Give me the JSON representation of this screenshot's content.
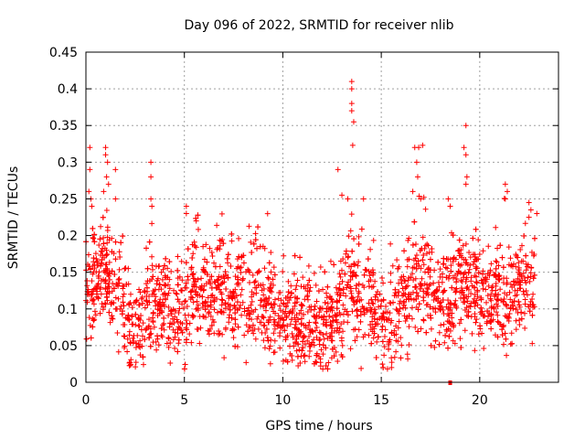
{
  "chart_data": {
    "type": "scatter",
    "title": "Day 096 of 2022, SRMTID for receiver nlib",
    "xlabel": "GPS time / hours",
    "ylabel": "SRMTID / TECUs",
    "xlim": [
      0,
      24
    ],
    "ylim": [
      0,
      0.45
    ],
    "xticks": [
      0,
      5,
      10,
      15,
      20
    ],
    "xtick_labels": [
      "0",
      "5",
      "10",
      "15",
      "20"
    ],
    "yticks": [
      0,
      0.05,
      0.1,
      0.15,
      0.2,
      0.25,
      0.3,
      0.35,
      0.4,
      0.45
    ],
    "ytick_labels": [
      "0",
      "0.05",
      "0.1",
      "0.15",
      "0.2",
      "0.25",
      "0.3",
      "0.35",
      "0.4",
      "0.45"
    ],
    "grid": true,
    "marker": "+",
    "color": "#ff0000",
    "outliers": [
      {
        "x": 0.2,
        "y": 0.32
      },
      {
        "x": 0.2,
        "y": 0.29
      },
      {
        "x": 0.15,
        "y": 0.26
      },
      {
        "x": 0.25,
        "y": 0.25
      },
      {
        "x": 0.3,
        "y": 0.24
      },
      {
        "x": 1.0,
        "y": 0.32
      },
      {
        "x": 1.0,
        "y": 0.31
      },
      {
        "x": 1.1,
        "y": 0.3
      },
      {
        "x": 1.05,
        "y": 0.28
      },
      {
        "x": 1.15,
        "y": 0.27
      },
      {
        "x": 0.9,
        "y": 0.26
      },
      {
        "x": 1.5,
        "y": 0.29
      },
      {
        "x": 1.5,
        "y": 0.25
      },
      {
        "x": 3.3,
        "y": 0.3
      },
      {
        "x": 3.3,
        "y": 0.28
      },
      {
        "x": 3.3,
        "y": 0.25
      },
      {
        "x": 3.35,
        "y": 0.24
      },
      {
        "x": 5.1,
        "y": 0.24
      },
      {
        "x": 5.1,
        "y": 0.23
      },
      {
        "x": 5.6,
        "y": 0.22
      },
      {
        "x": 13.5,
        "y": 0.41
      },
      {
        "x": 13.5,
        "y": 0.4
      },
      {
        "x": 13.5,
        "y": 0.38
      },
      {
        "x": 13.5,
        "y": 0.37
      },
      {
        "x": 13.6,
        "y": 0.355
      },
      {
        "x": 13.55,
        "y": 0.323
      },
      {
        "x": 12.8,
        "y": 0.29
      },
      {
        "x": 13.0,
        "y": 0.255
      },
      {
        "x": 13.3,
        "y": 0.25
      },
      {
        "x": 14.1,
        "y": 0.25
      },
      {
        "x": 16.7,
        "y": 0.32
      },
      {
        "x": 16.9,
        "y": 0.32
      },
      {
        "x": 17.1,
        "y": 0.323
      },
      {
        "x": 16.8,
        "y": 0.3
      },
      {
        "x": 16.85,
        "y": 0.28
      },
      {
        "x": 16.6,
        "y": 0.26
      },
      {
        "x": 17.0,
        "y": 0.25
      },
      {
        "x": 19.3,
        "y": 0.35
      },
      {
        "x": 19.2,
        "y": 0.32
      },
      {
        "x": 19.3,
        "y": 0.31
      },
      {
        "x": 19.35,
        "y": 0.28
      },
      {
        "x": 19.3,
        "y": 0.27
      },
      {
        "x": 18.4,
        "y": 0.25
      },
      {
        "x": 18.5,
        "y": 0.24
      },
      {
        "x": 21.3,
        "y": 0.27
      },
      {
        "x": 21.4,
        "y": 0.26
      },
      {
        "x": 21.3,
        "y": 0.25
      },
      {
        "x": 22.5,
        "y": 0.245
      },
      {
        "x": 22.6,
        "y": 0.235
      },
      {
        "x": 22.5,
        "y": 0.225
      },
      {
        "x": 22.9,
        "y": 0.23
      }
    ],
    "trend": [
      {
        "x": 0.0,
        "y": 0.13
      },
      {
        "x": 0.5,
        "y": 0.14
      },
      {
        "x": 1.0,
        "y": 0.15
      },
      {
        "x": 1.5,
        "y": 0.14
      },
      {
        "x": 2.0,
        "y": 0.1
      },
      {
        "x": 2.5,
        "y": 0.07
      },
      {
        "x": 3.0,
        "y": 0.09
      },
      {
        "x": 3.5,
        "y": 0.11
      },
      {
        "x": 4.0,
        "y": 0.12
      },
      {
        "x": 4.5,
        "y": 0.1
      },
      {
        "x": 5.0,
        "y": 0.09
      },
      {
        "x": 5.5,
        "y": 0.13
      },
      {
        "x": 6.0,
        "y": 0.13
      },
      {
        "x": 6.5,
        "y": 0.12
      },
      {
        "x": 7.0,
        "y": 0.12
      },
      {
        "x": 7.5,
        "y": 0.11
      },
      {
        "x": 8.0,
        "y": 0.13
      },
      {
        "x": 8.5,
        "y": 0.12
      },
      {
        "x": 9.0,
        "y": 0.11
      },
      {
        "x": 9.5,
        "y": 0.1
      },
      {
        "x": 10.0,
        "y": 0.09
      },
      {
        "x": 10.5,
        "y": 0.08
      },
      {
        "x": 11.0,
        "y": 0.08
      },
      {
        "x": 11.5,
        "y": 0.08
      },
      {
        "x": 12.0,
        "y": 0.07
      },
      {
        "x": 12.5,
        "y": 0.08
      },
      {
        "x": 13.0,
        "y": 0.11
      },
      {
        "x": 13.5,
        "y": 0.14
      },
      {
        "x": 14.0,
        "y": 0.12
      },
      {
        "x": 14.5,
        "y": 0.1
      },
      {
        "x": 15.0,
        "y": 0.09
      },
      {
        "x": 15.5,
        "y": 0.08
      },
      {
        "x": 16.0,
        "y": 0.11
      },
      {
        "x": 16.5,
        "y": 0.13
      },
      {
        "x": 17.0,
        "y": 0.15
      },
      {
        "x": 17.5,
        "y": 0.12
      },
      {
        "x": 18.0,
        "y": 0.11
      },
      {
        "x": 18.5,
        "y": 0.1
      },
      {
        "x": 19.0,
        "y": 0.12
      },
      {
        "x": 19.5,
        "y": 0.14
      },
      {
        "x": 20.0,
        "y": 0.13
      },
      {
        "x": 20.5,
        "y": 0.13
      },
      {
        "x": 21.0,
        "y": 0.12
      },
      {
        "x": 21.5,
        "y": 0.11
      },
      {
        "x": 22.0,
        "y": 0.13
      },
      {
        "x": 22.5,
        "y": 0.14
      },
      {
        "x": 22.8,
        "y": 0.14
      }
    ],
    "spread": 0.035,
    "x_range": [
      0.0,
      22.8
    ],
    "point_count": 2600,
    "gap_marker": {
      "x": 18.5,
      "y": 0.0
    }
  }
}
